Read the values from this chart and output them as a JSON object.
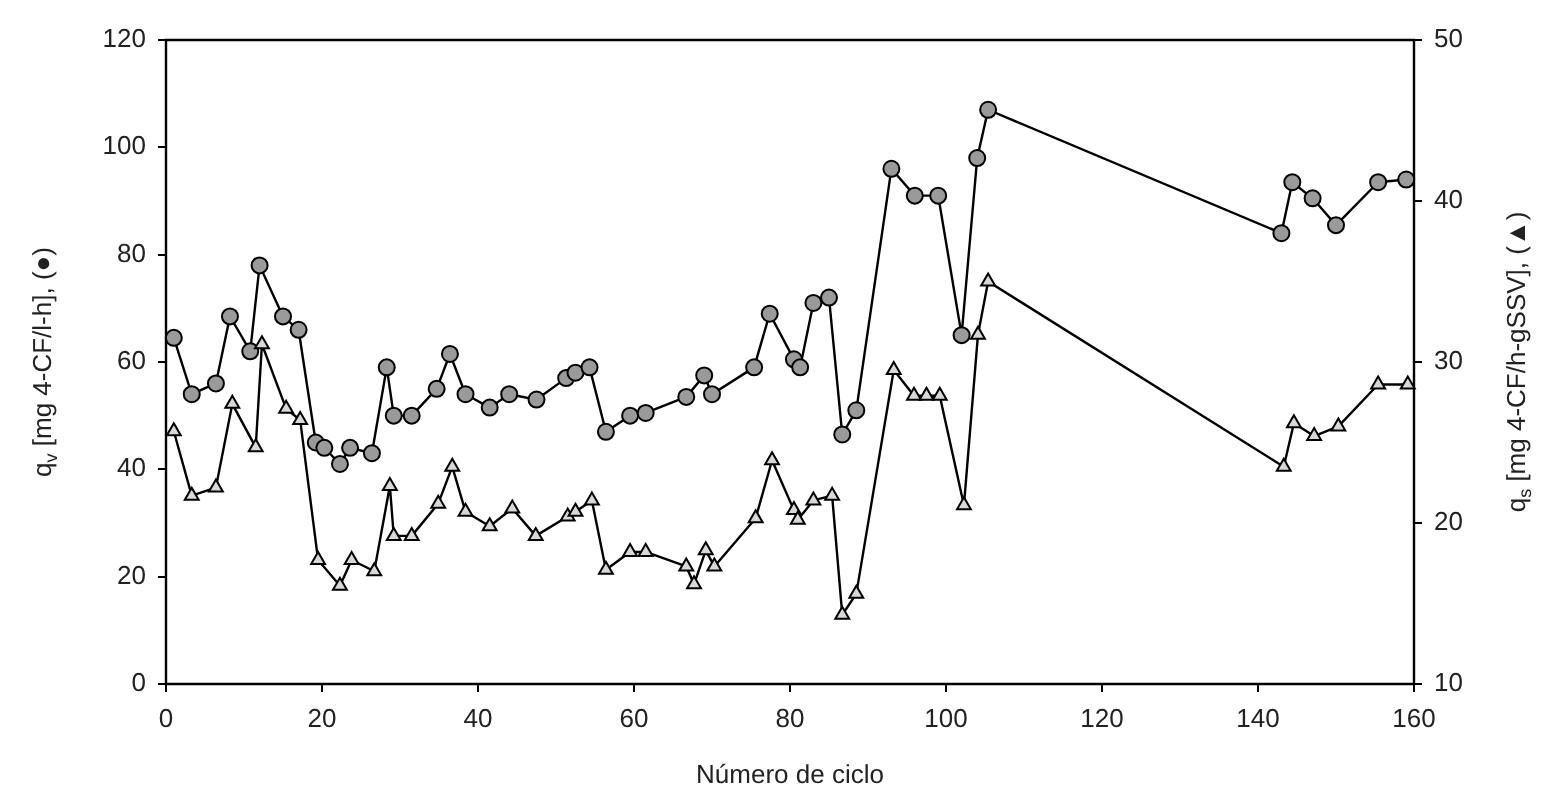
{
  "chart_data": {
    "type": "line",
    "xlabel": "Número de ciclo",
    "ylabel": "q$_{v}$ [mg 4-CF/l-h], (●)",
    "y2label": "q$_{s}$ [mg 4-CF/h-gSSV], (▲)",
    "xlim": [
      0,
      160
    ],
    "xticks": [
      0,
      20,
      40,
      60,
      80,
      100,
      120,
      140,
      160
    ],
    "ylim": [
      0,
      120
    ],
    "yticks": [
      0,
      20,
      40,
      60,
      80,
      100,
      120
    ],
    "y2lim": [
      10,
      50
    ],
    "y2ticks": [
      10,
      20,
      30,
      40,
      50
    ],
    "grid": false,
    "legend": false,
    "line_style": "solid",
    "series": [
      {
        "marker": "circle",
        "color": "#000000",
        "x": [
          1,
          3.3,
          6.4,
          8.2,
          10.8,
          12,
          15,
          17,
          19.2,
          20.3,
          22.3,
          23.6,
          26.4,
          28.3,
          29.2,
          31.5,
          34.7,
          36.4,
          38.4,
          41.5,
          44,
          47.5,
          51.3,
          52.5,
          54.3,
          56.4,
          59.5,
          61.5,
          66.7,
          69,
          70,
          75.4,
          77.4,
          80.5,
          81.3,
          83,
          85,
          86.7,
          88.5,
          93,
          96,
          99,
          102,
          104,
          105.4,
          143,
          144.4,
          147,
          150,
          155.4,
          159
        ],
        "values": [
          64.5,
          54,
          56,
          68.5,
          62,
          78,
          68.5,
          66,
          45,
          44,
          41,
          44,
          43,
          59,
          50,
          50,
          55,
          61.5,
          54,
          51.5,
          54,
          53,
          57,
          58,
          59,
          47,
          50,
          50.5,
          53.5,
          57.5,
          54,
          59,
          69,
          60.5,
          59,
          71,
          72,
          46.5,
          51,
          96,
          91,
          91,
          65,
          98,
          107,
          84,
          93.5,
          90.5,
          85.5,
          93.5,
          94
        ]
      },
      {
        "marker": "triangle",
        "color": "#000000",
        "axis": "y2",
        "x": [
          1,
          3.3,
          6.4,
          8.5,
          11.5,
          12.3,
          15.4,
          17.2,
          19.5,
          22.3,
          23.8,
          26.7,
          28.7,
          29.2,
          31.5,
          34.9,
          36.7,
          38.4,
          41.5,
          44.4,
          47.4,
          51.5,
          52.5,
          54.6,
          56.4,
          59.5,
          61.5,
          66.7,
          67.7,
          69.2,
          70.3,
          75.6,
          77.7,
          80.5,
          81,
          83,
          85.4,
          86.7,
          88.5,
          93.3,
          95.9,
          97.5,
          99.2,
          102.3,
          104.1,
          105.4,
          143.3,
          144.6,
          147.2,
          150.3,
          155.4,
          159.2
        ],
        "values": [
          25.7,
          21.7,
          22.2,
          27.4,
          24.7,
          31.1,
          27.1,
          26.4,
          17.7,
          16.1,
          17.7,
          17,
          22.3,
          19.2,
          19.2,
          21.2,
          23.5,
          20.7,
          19.8,
          20.9,
          19.2,
          20.4,
          20.7,
          21.4,
          17.1,
          18.2,
          18.2,
          17.3,
          16.2,
          18.3,
          17.3,
          20.3,
          23.9,
          20.8,
          20.2,
          21.4,
          21.7,
          14.3,
          15.6,
          29.5,
          27.9,
          27.9,
          27.9,
          21.1,
          31.7,
          35,
          23.5,
          26.2,
          25.4,
          26,
          28.6,
          28.6
        ]
      }
    ]
  }
}
